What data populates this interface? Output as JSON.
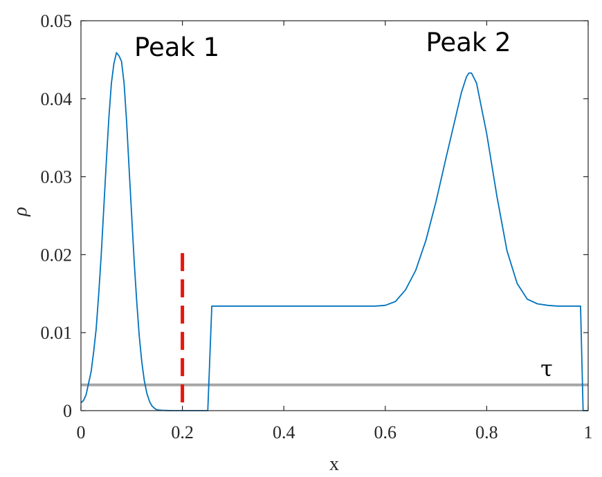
{
  "chart_data": {
    "type": "line",
    "xlabel": "x",
    "ylabel": "ρ",
    "xlim": [
      0,
      1
    ],
    "ylim": [
      0,
      0.05
    ],
    "xticks": [
      0,
      0.2,
      0.4,
      0.6,
      0.8,
      1
    ],
    "xtick_labels": [
      "0",
      "0.2",
      "0.4",
      "0.6",
      "0.8",
      "1"
    ],
    "yticks": [
      0,
      0.01,
      0.02,
      0.03,
      0.04,
      0.05
    ],
    "ytick_labels": [
      "0",
      "0.01",
      "0.02",
      "0.03",
      "0.04",
      "0.05"
    ],
    "grid": false,
    "series": [
      {
        "color": "#0072BD",
        "x": [
          0,
          0.005,
          0.01,
          0.015,
          0.02,
          0.025,
          0.03,
          0.035,
          0.04,
          0.045,
          0.05,
          0.055,
          0.06,
          0.065,
          0.07,
          0.075,
          0.08,
          0.085,
          0.09,
          0.095,
          0.1,
          0.105,
          0.11,
          0.115,
          0.12,
          0.125,
          0.13,
          0.135,
          0.14,
          0.145,
          0.15,
          0.16,
          0.17,
          0.18,
          0.19,
          0.2,
          0.21,
          0.22,
          0.23,
          0.24,
          0.25,
          0.258,
          0.3,
          0.4,
          0.5,
          0.55,
          0.58,
          0.6,
          0.62,
          0.64,
          0.66,
          0.68,
          0.7,
          0.72,
          0.74,
          0.75,
          0.76,
          0.765,
          0.77,
          0.78,
          0.8,
          0.82,
          0.84,
          0.86,
          0.88,
          0.9,
          0.92,
          0.94,
          0.96,
          0.98,
          0.985,
          0.99,
          1.0
        ],
        "y": [
          0.001,
          0.0013,
          0.002,
          0.0035,
          0.005,
          0.0075,
          0.0105,
          0.015,
          0.02,
          0.026,
          0.032,
          0.0375,
          0.042,
          0.0445,
          0.0459,
          0.0455,
          0.0448,
          0.042,
          0.037,
          0.031,
          0.025,
          0.019,
          0.014,
          0.0095,
          0.0062,
          0.0038,
          0.0022,
          0.0012,
          0.0006,
          0.0003,
          0.0001,
          4e-05,
          2e-05,
          0,
          0,
          0,
          0,
          0,
          0,
          0,
          0,
          0.0134,
          0.0134,
          0.0134,
          0.0134,
          0.0134,
          0.0134,
          0.0135,
          0.014,
          0.0155,
          0.018,
          0.0218,
          0.0268,
          0.0325,
          0.038,
          0.0408,
          0.0428,
          0.0433,
          0.0433,
          0.042,
          0.0355,
          0.0275,
          0.0205,
          0.0163,
          0.0143,
          0.0137,
          0.0135,
          0.0134,
          0.0134,
          0.0134,
          0.0134,
          0,
          0
        ]
      }
    ],
    "threshold": {
      "label": "τ",
      "value": 0.0033,
      "color": "#A6A6A6"
    },
    "divider": {
      "x": 0.2,
      "y_top": 0.0202,
      "color": "#E8160C"
    },
    "annotations": [
      {
        "text": "Peak 1",
        "x": 0.105,
        "y": 0.0455
      },
      {
        "text": "Peak 2",
        "x": 0.68,
        "y": 0.0461
      }
    ]
  }
}
